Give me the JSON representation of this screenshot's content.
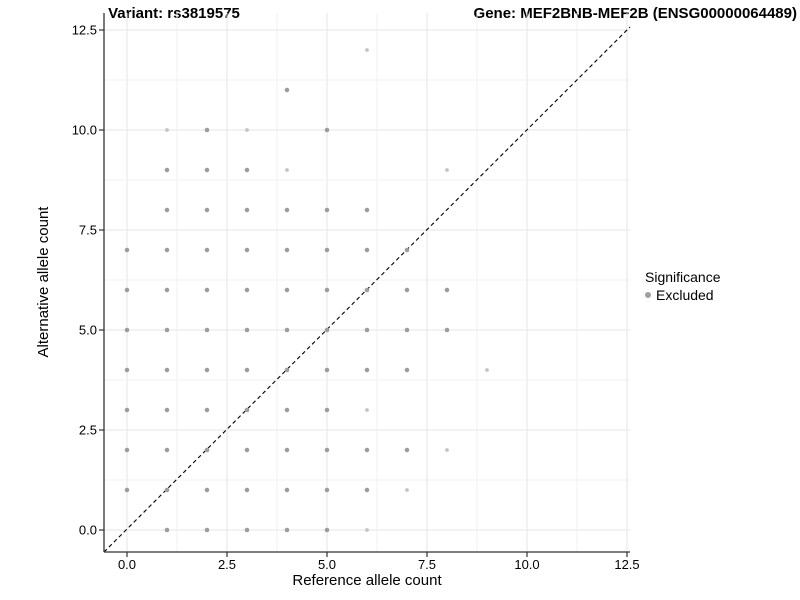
{
  "plot": {
    "title_left": "Variant: rs3819575",
    "title_right": "Gene: MEF2BNB-MEF2B (ENSG00000064489)",
    "xlabel": "Reference allele count",
    "ylabel": "Alternative allele count"
  },
  "legend": {
    "title": "Significance",
    "items": [
      {
        "label": "Excluded",
        "color": "#a0a0a0",
        "marker": "circle-icon"
      }
    ]
  },
  "colors": {
    "point": "#9d9d9d",
    "point_light": "#c4c4c4",
    "grid_major": "#e6e6e6",
    "grid_minor": "#f2f2f2",
    "axis_line": "#333333",
    "diagonal": "#000000",
    "background": "#ffffff"
  },
  "chart_data": {
    "type": "scatter",
    "title": "Variant: rs3819575 / Gene: MEF2BNB-MEF2B (ENSG00000064489)",
    "xlabel": "Reference allele count",
    "ylabel": "Alternative allele count",
    "xlim": [
      -0.55,
      12.55
    ],
    "ylim": [
      -0.55,
      12.95
    ],
    "xticks": [
      0.0,
      2.5,
      5.0,
      7.5,
      10.0,
      12.5
    ],
    "yticks": [
      0.0,
      2.5,
      5.0,
      7.5,
      10.0,
      12.5
    ],
    "grid": "major every 2.5, minor every 1.25",
    "legend_position": "right",
    "diagonal_line": {
      "type": "identity y=x",
      "style": "dashed",
      "color": "#000000"
    },
    "series": [
      {
        "name": "Excluded",
        "note": "points listed as [x, y, light] where light=1 means smaller/fainter dot",
        "points": [
          [
            6,
            12,
            1
          ],
          [
            4,
            11,
            0
          ],
          [
            1,
            10,
            1
          ],
          [
            2,
            10,
            0
          ],
          [
            3,
            10,
            1
          ],
          [
            5,
            10,
            0
          ],
          [
            1,
            9,
            0
          ],
          [
            2,
            9,
            0
          ],
          [
            3,
            9,
            0
          ],
          [
            4,
            9,
            1
          ],
          [
            8,
            9,
            1
          ],
          [
            1,
            8,
            0
          ],
          [
            2,
            8,
            0
          ],
          [
            3,
            8,
            0
          ],
          [
            4,
            8,
            0
          ],
          [
            5,
            8,
            0
          ],
          [
            6,
            8,
            0
          ],
          [
            0,
            7,
            0
          ],
          [
            1,
            7,
            0
          ],
          [
            2,
            7,
            0
          ],
          [
            3,
            7,
            0
          ],
          [
            4,
            7,
            0
          ],
          [
            5,
            7,
            0
          ],
          [
            6,
            7,
            0
          ],
          [
            7,
            7,
            0
          ],
          [
            0,
            6,
            0
          ],
          [
            1,
            6,
            0
          ],
          [
            2,
            6,
            0
          ],
          [
            3,
            6,
            0
          ],
          [
            4,
            6,
            0
          ],
          [
            5,
            6,
            0
          ],
          [
            6,
            6,
            0
          ],
          [
            7,
            6,
            0
          ],
          [
            8,
            6,
            0
          ],
          [
            0,
            5,
            0
          ],
          [
            1,
            5,
            0
          ],
          [
            2,
            5,
            0
          ],
          [
            3,
            5,
            0
          ],
          [
            4,
            5,
            0
          ],
          [
            5,
            5,
            0
          ],
          [
            6,
            5,
            0
          ],
          [
            7,
            5,
            0
          ],
          [
            8,
            5,
            0
          ],
          [
            0,
            4,
            0
          ],
          [
            1,
            4,
            0
          ],
          [
            2,
            4,
            0
          ],
          [
            3,
            4,
            0
          ],
          [
            4,
            4,
            0
          ],
          [
            5,
            4,
            0
          ],
          [
            6,
            4,
            0
          ],
          [
            7,
            4,
            0
          ],
          [
            9,
            4,
            1
          ],
          [
            0,
            3,
            0
          ],
          [
            1,
            3,
            0
          ],
          [
            2,
            3,
            0
          ],
          [
            3,
            3,
            0
          ],
          [
            4,
            3,
            0
          ],
          [
            5,
            3,
            0
          ],
          [
            6,
            3,
            1
          ],
          [
            0,
            2,
            0
          ],
          [
            1,
            2,
            0
          ],
          [
            2,
            2,
            0
          ],
          [
            3,
            2,
            0
          ],
          [
            4,
            2,
            0
          ],
          [
            5,
            2,
            0
          ],
          [
            6,
            2,
            0
          ],
          [
            7,
            2,
            0
          ],
          [
            8,
            2,
            1
          ],
          [
            0,
            1,
            0
          ],
          [
            1,
            1,
            0
          ],
          [
            2,
            1,
            0
          ],
          [
            3,
            1,
            0
          ],
          [
            4,
            1,
            0
          ],
          [
            5,
            1,
            0
          ],
          [
            6,
            1,
            0
          ],
          [
            7,
            1,
            1
          ],
          [
            1,
            0,
            0
          ],
          [
            2,
            0,
            0
          ],
          [
            3,
            0,
            0
          ],
          [
            4,
            0,
            0
          ],
          [
            5,
            0,
            0
          ],
          [
            6,
            0,
            1
          ]
        ]
      }
    ]
  }
}
